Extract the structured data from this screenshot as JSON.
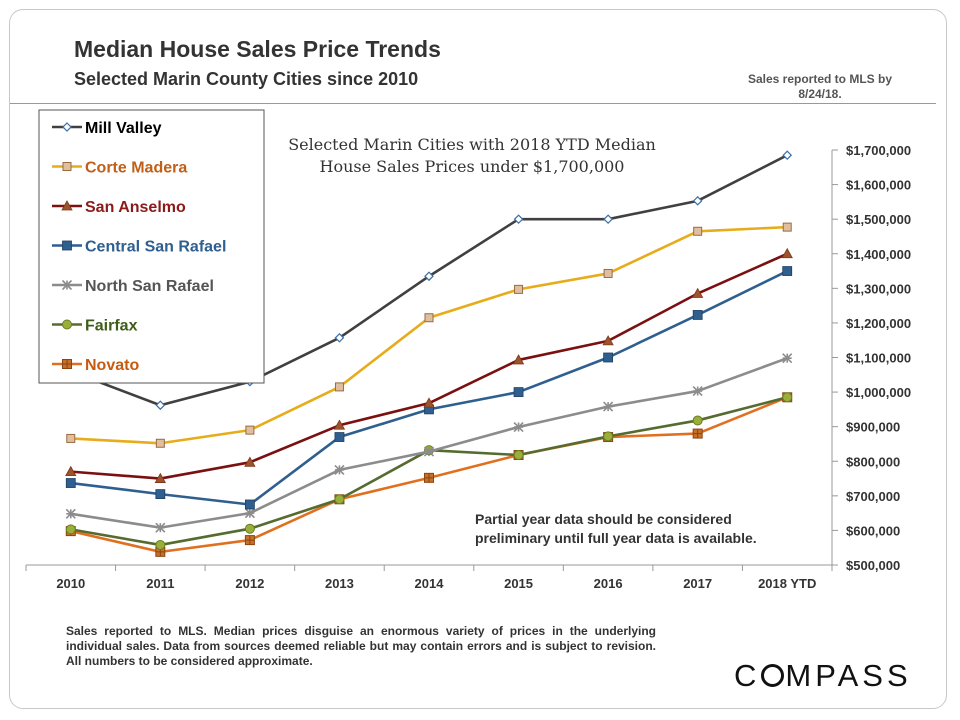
{
  "header": {
    "title": "Median House Sales Price Trends",
    "subtitle": "Selected Marin County Cities since 2010",
    "note": "Sales reported to MLS by 8/24/18."
  },
  "footer": {
    "disclaimer": "Sales reported to MLS. Median prices disguise an enormous variety of prices in the underlying individual sales. Data from sources deemed reliable but may contain errors and is subject to revision. All numbers to be considered approximate."
  },
  "logo": {
    "text": "COMPASS"
  },
  "chart_data": {
    "type": "line",
    "annotation": "Selected Marin Cities with 2018 YTD Median House Sales Prices under $1,700,000",
    "annotation_partial": "Partial year data should be considered preliminary until full year data is available.",
    "categories": [
      "2010",
      "2011",
      "2012",
      "2013",
      "2014",
      "2015",
      "2016",
      "2017",
      "2018 YTD"
    ],
    "ylim": [
      500000,
      1700000
    ],
    "yticks": [
      500000,
      600000,
      700000,
      800000,
      900000,
      1000000,
      1100000,
      1200000,
      1300000,
      1400000,
      1500000,
      1600000,
      1700000
    ],
    "ytick_labels": [
      "$500,000",
      "$600,000",
      "$700,000",
      "$800,000",
      "$900,000",
      "$1,000,000",
      "$1,100,000",
      "$1,200,000",
      "$1,300,000",
      "$1,400,000",
      "$1,500,000",
      "$1,600,000",
      "$1,700,000"
    ],
    "grid": false,
    "legend_position": "top-left",
    "y_axis_side": "right",
    "series": [
      {
        "name": "Mill Valley",
        "color": "#404040",
        "marker": "diamond",
        "label_color": "#000000",
        "values": [
          1060000,
          962000,
          1030000,
          1157000,
          1335000,
          1500000,
          1500000,
          1553000,
          1685000
        ]
      },
      {
        "name": "Corte Madera",
        "color": "#e6ac1a",
        "marker": "square-tan",
        "label_color": "#c06018",
        "values": [
          866000,
          852000,
          890000,
          1015000,
          1215000,
          1297000,
          1343000,
          1465000,
          1477000
        ]
      },
      {
        "name": "San Anselmo",
        "color": "#7a1010",
        "marker": "triangle",
        "label_color": "#8b1a1a",
        "values": [
          770000,
          750000,
          797000,
          904000,
          968000,
          1093000,
          1148000,
          1285000,
          1400000
        ]
      },
      {
        "name": "Central San Rafael",
        "color": "#2f5f8f",
        "marker": "square",
        "label_color": "#2f5f8f",
        "values": [
          737000,
          705000,
          675000,
          870000,
          950000,
          1000000,
          1100000,
          1223000,
          1350000
        ]
      },
      {
        "name": "North San Rafael",
        "color": "#8c8c8c",
        "marker": "asterisk",
        "label_color": "#555555",
        "values": [
          648000,
          608000,
          650000,
          775000,
          828000,
          899000,
          958000,
          1003000,
          1098000
        ]
      },
      {
        "name": "Fairfax",
        "color": "#556b2f",
        "marker": "circle",
        "label_color": "#3e5d1a",
        "values": [
          603000,
          558000,
          605000,
          690000,
          832000,
          818000,
          872000,
          918000,
          985000
        ]
      },
      {
        "name": "Novato",
        "color": "#e07020",
        "marker": "square-cross",
        "label_color": "#c85a10",
        "values": [
          598000,
          538000,
          572000,
          690000,
          752000,
          818000,
          870000,
          880000,
          985000
        ]
      }
    ]
  }
}
